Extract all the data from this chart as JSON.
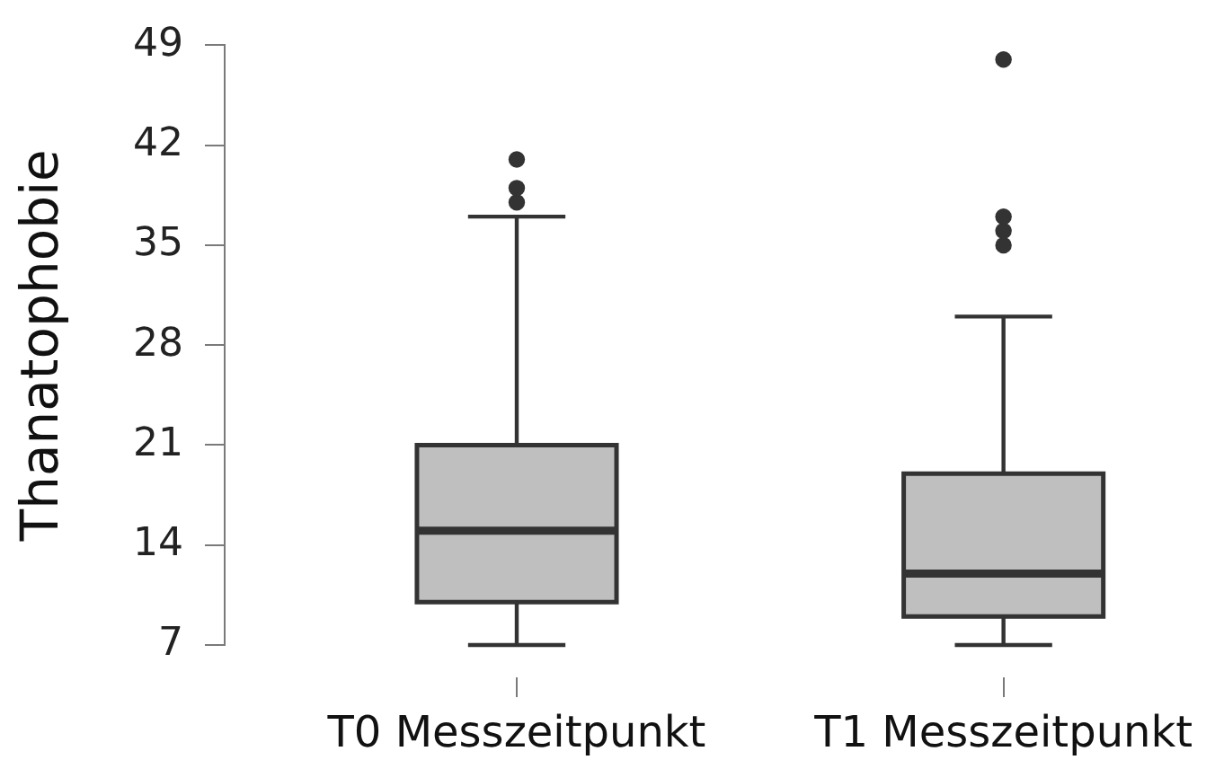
{
  "chart_data": {
    "type": "box",
    "categories": [
      "T0 Messzeitpunkt",
      "T1 Messzeitpunkt"
    ],
    "ylabel": "Thanatophobie",
    "ylim": [
      7,
      49
    ],
    "yticks": [
      7,
      14,
      21,
      28,
      35,
      42,
      49
    ],
    "grid": false,
    "color": "#bfbfbf",
    "boxes": [
      {
        "low": 7,
        "q1": 10,
        "median": 15,
        "q3": 21,
        "high": 37,
        "outliers": [
          38,
          39,
          41
        ]
      },
      {
        "low": 7,
        "q1": 9,
        "median": 12,
        "q3": 19,
        "high": 30,
        "outliers": [
          35,
          36,
          37,
          48
        ]
      }
    ]
  }
}
